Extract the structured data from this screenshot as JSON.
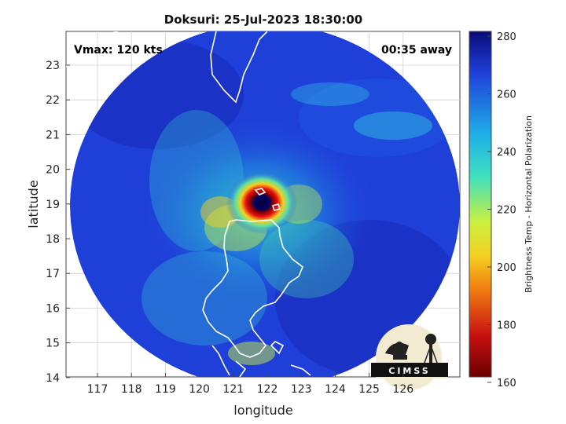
{
  "title": "Doksuri: 25-Jul-2023 18:30:00",
  "vmax_text": "Vmax: 120 kts",
  "away_text": "00:35 away",
  "x_axis": {
    "label": "longitude",
    "ticks": [
      "117",
      "118",
      "119",
      "120",
      "121",
      "122",
      "123",
      "124",
      "125",
      "126"
    ]
  },
  "y_axis": {
    "label": "latitude",
    "ticks": [
      "23",
      "22",
      "21",
      "20",
      "19",
      "18",
      "17",
      "16",
      "15",
      "14"
    ]
  },
  "colorbar": {
    "label": "Brightness Temp - Horizontal Polarization",
    "ticks": [
      "280",
      "260",
      "240",
      "220",
      "200",
      "180",
      "160"
    ],
    "colors": [
      "#0a0a7a",
      "#1f3fd9",
      "#1fb0e8",
      "#3fe0c0",
      "#c8f040",
      "#f5d020",
      "#f07a10",
      "#c81010",
      "#6a0000"
    ]
  },
  "logo": {
    "text": "CIMSS"
  },
  "storm_center": {
    "lon": 121.6,
    "lat": 19.0
  }
}
